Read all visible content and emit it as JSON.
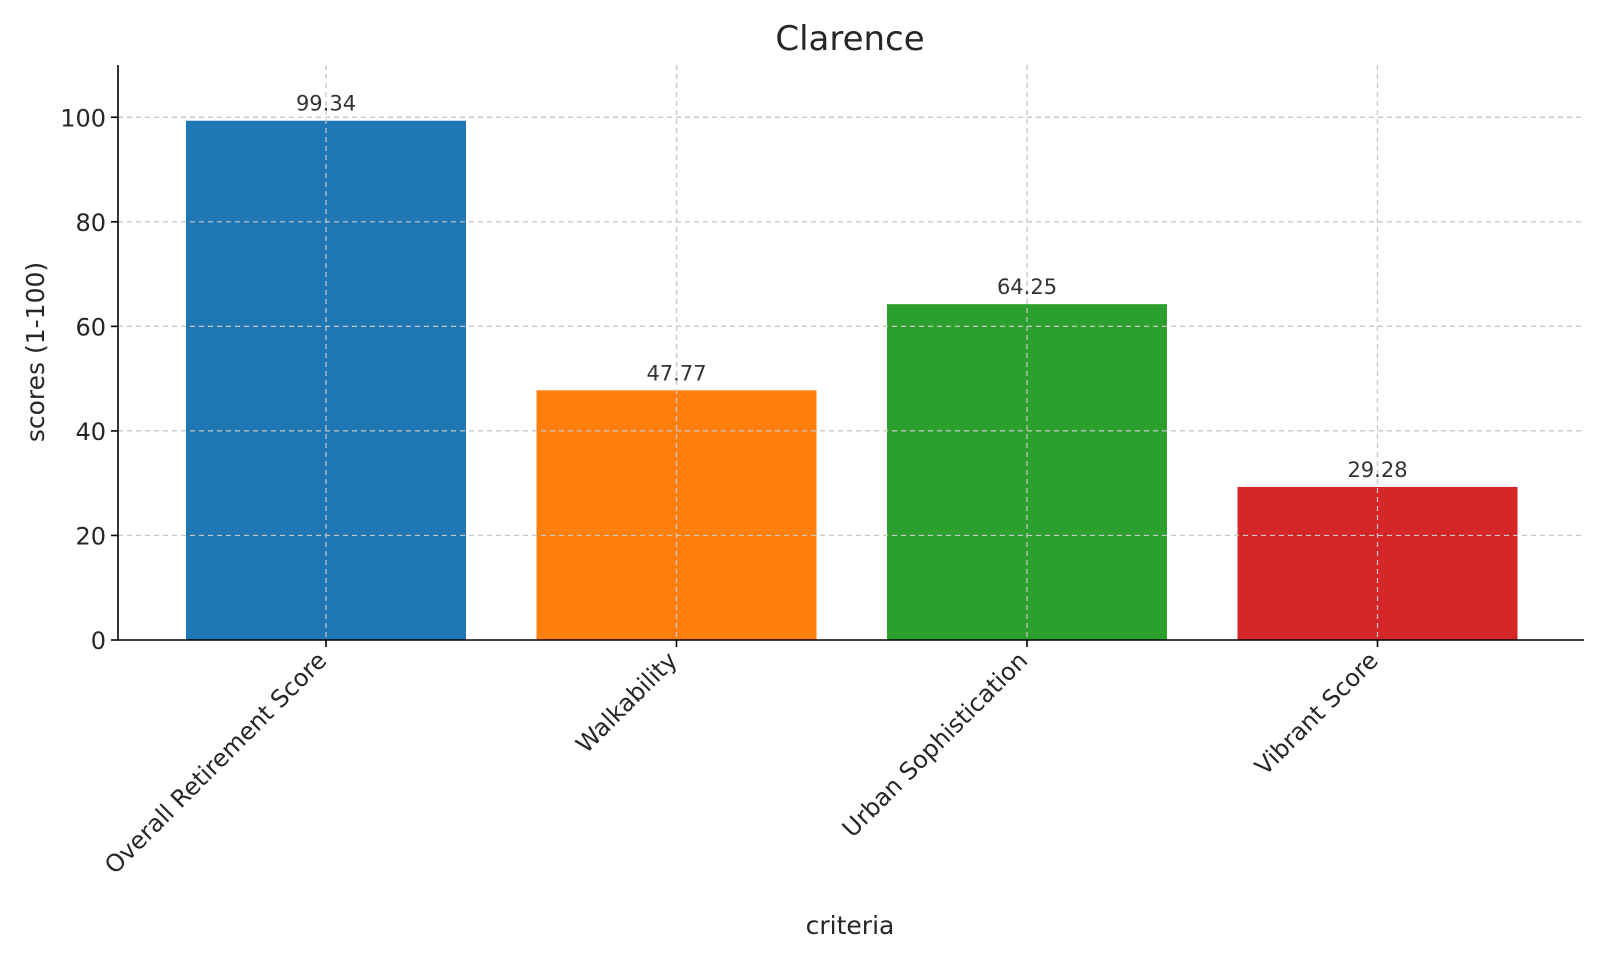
{
  "chart_data": {
    "type": "bar",
    "title": "Clarence",
    "xlabel": "criteria",
    "ylabel": "scores (1-100)",
    "categories": [
      "Overall Retirement Score",
      "Walkability",
      "Urban Sophistication",
      "Vibrant Score"
    ],
    "values": [
      99.34,
      47.77,
      64.25,
      29.28
    ],
    "value_labels": [
      "99.34",
      "47.77",
      "64.25",
      "29.28"
    ],
    "colors": [
      "#1f77b4",
      "#ff7f0e",
      "#2ca02c",
      "#d62728"
    ],
    "ylim": [
      0,
      110
    ],
    "yticks": [
      0,
      20,
      40,
      60,
      80,
      100
    ],
    "grid": true,
    "legend": false
  }
}
